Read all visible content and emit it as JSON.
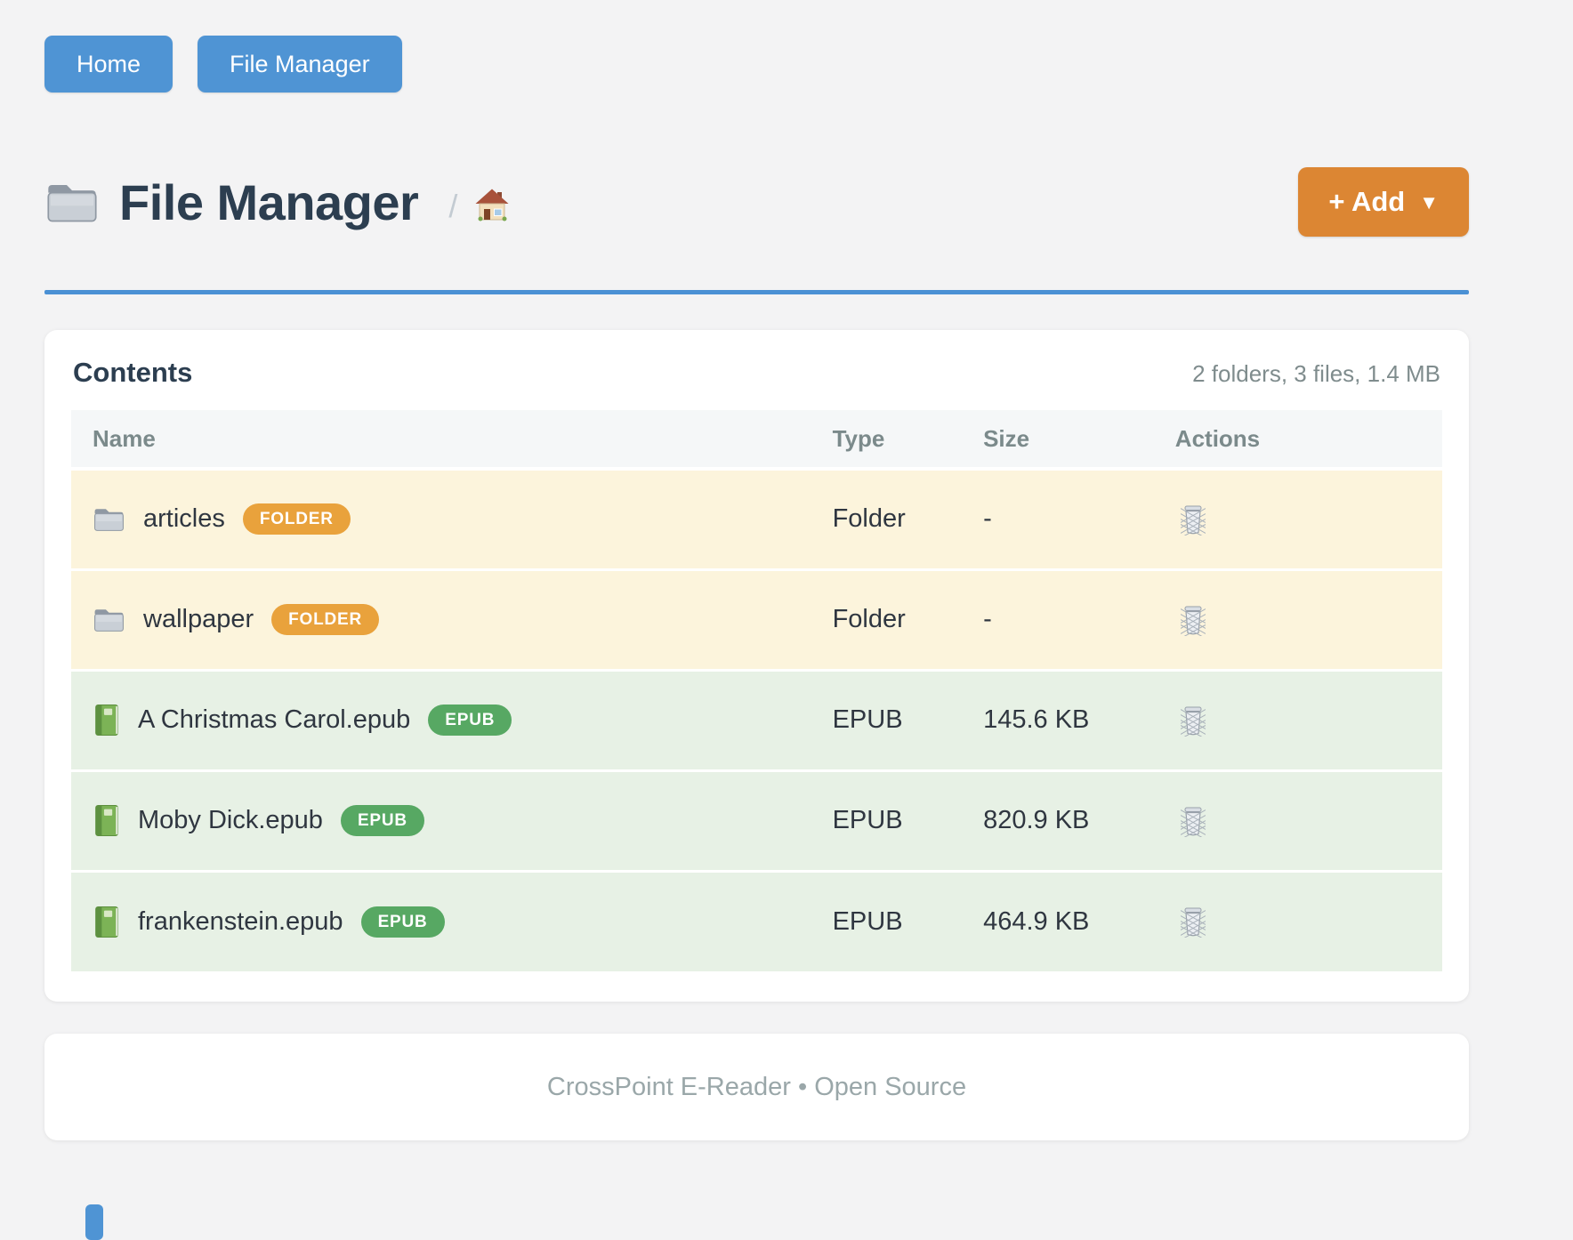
{
  "nav": {
    "buttons": [
      {
        "label": "Home"
      },
      {
        "label": "File Manager"
      }
    ]
  },
  "header": {
    "title": "File Manager",
    "title_icon": "folder-icon",
    "breadcrumb": {
      "separator": "/",
      "home_icon": "house-icon"
    },
    "add_button": {
      "label": "+ Add",
      "caret": "▼"
    }
  },
  "contents": {
    "heading": "Contents",
    "summary": "2 folders, 3 files, 1.4 MB",
    "columns": {
      "name": "Name",
      "type": "Type",
      "size": "Size",
      "actions": "Actions"
    },
    "rows": [
      {
        "icon": "folder-icon",
        "name": "articles",
        "badge": "FOLDER",
        "badge_type": "folder",
        "type": "Folder",
        "size": "-",
        "kind": "folder"
      },
      {
        "icon": "folder-icon",
        "name": "wallpaper",
        "badge": "FOLDER",
        "badge_type": "folder",
        "type": "Folder",
        "size": "-",
        "kind": "folder"
      },
      {
        "icon": "book-icon",
        "name": "A Christmas Carol.epub",
        "badge": "EPUB",
        "badge_type": "epub",
        "type": "EPUB",
        "size": "145.6 KB",
        "kind": "epub"
      },
      {
        "icon": "book-icon",
        "name": "Moby Dick.epub",
        "badge": "EPUB",
        "badge_type": "epub",
        "type": "EPUB",
        "size": "820.9 KB",
        "kind": "epub"
      },
      {
        "icon": "book-icon",
        "name": "frankenstein.epub",
        "badge": "EPUB",
        "badge_type": "epub",
        "type": "EPUB",
        "size": "464.9 KB",
        "kind": "epub"
      }
    ],
    "action_icon": "trash-icon"
  },
  "footer": {
    "text": "CrossPoint E-Reader • Open Source"
  },
  "colors": {
    "page_bg": "#f3f3f4",
    "nav_blue": "#4f94d4",
    "rule_blue": "#4a90d4",
    "add_orange": "#dc8633",
    "badge_folder": "#e9a23c",
    "badge_epub": "#57a863",
    "row_folder_bg": "#fcf4dc",
    "row_epub_bg": "#e7f1e5",
    "header_bg": "#f5f7f8",
    "title_text": "#2c3e50",
    "muted_text": "#7f8c8d",
    "footer_text": "#9aa7a9"
  }
}
